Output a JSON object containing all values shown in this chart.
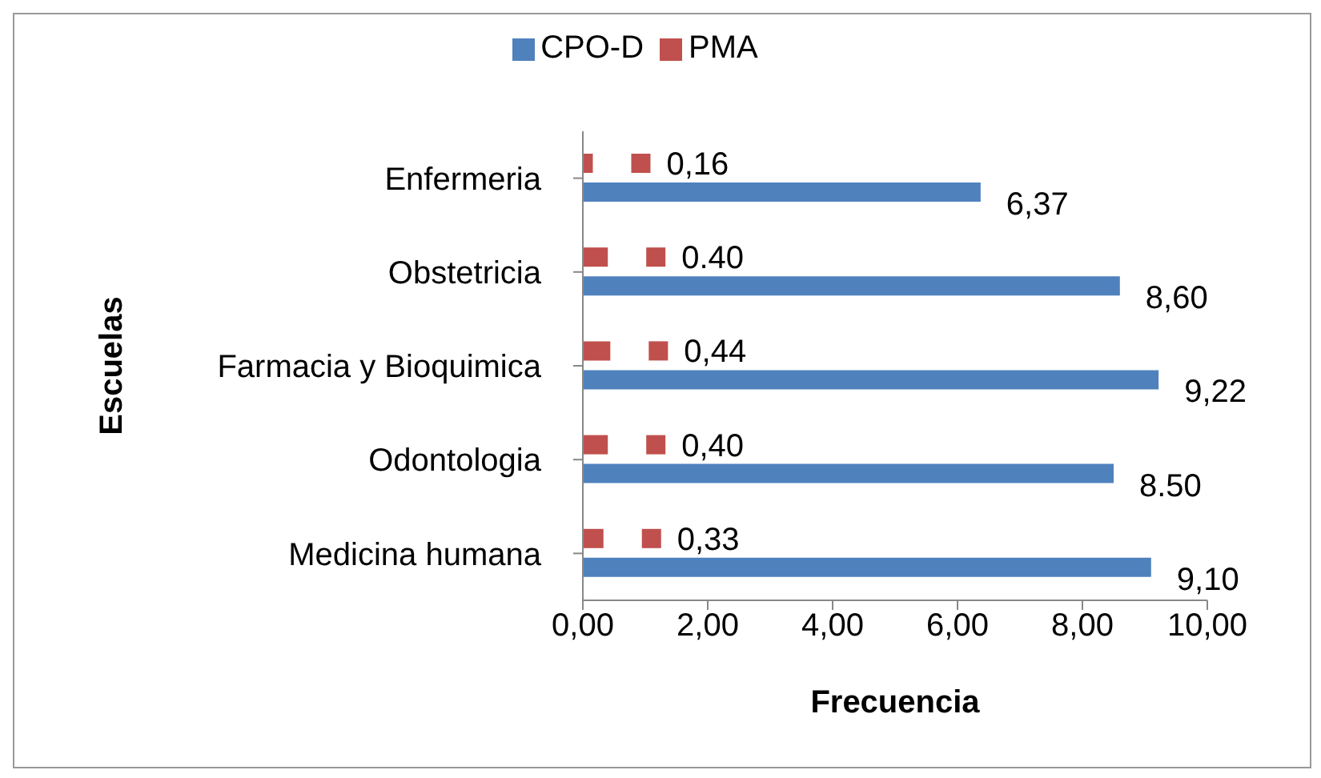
{
  "chart_data": {
    "type": "bar",
    "orientation": "horizontal",
    "xlabel": "Frecuencia",
    "ylabel": "Escuelas",
    "categories": [
      "Enfermeria",
      "Obstetricia",
      "Farmacia y Bioquimica",
      "Odontologia",
      "Medicina humana"
    ],
    "series": [
      {
        "name": "PMA",
        "color": "#c0504d",
        "values": [
          0.16,
          0.4,
          0.44,
          0.4,
          0.33
        ],
        "value_labels": [
          "0,16",
          "0.40",
          "0,44",
          "0,40",
          "0,33"
        ]
      },
      {
        "name": "CPO-D",
        "color": "#4f81bd",
        "values": [
          6.37,
          8.6,
          9.22,
          8.5,
          9.1
        ],
        "value_labels": [
          "6,37",
          "8,60",
          "9,22",
          "8.50",
          "9,10"
        ]
      }
    ],
    "xlim": [
      0,
      10
    ],
    "xticks": [
      {
        "value": 0,
        "label": "0,00"
      },
      {
        "value": 2,
        "label": "2,00"
      },
      {
        "value": 4,
        "label": "4,00"
      },
      {
        "value": 6,
        "label": "6,00"
      },
      {
        "value": 8,
        "label": "8,00"
      },
      {
        "value": 10,
        "label": "10,00"
      }
    ],
    "legend": "top",
    "grid": false
  }
}
